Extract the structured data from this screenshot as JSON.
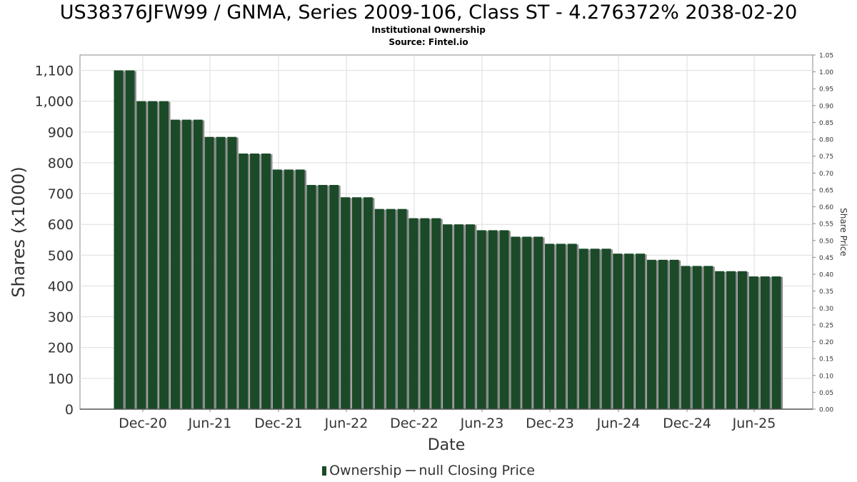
{
  "header": {
    "title": "US38376JFW99 / GNMA, Series 2009-106, Class ST - 4.276372% 2038-02-20",
    "subtitle": "Institutional Ownership",
    "source": "Source: Fintel.io"
  },
  "legend": {
    "items": [
      "Ownership",
      "null Closing Price"
    ]
  },
  "colors": {
    "bar": "#1a4a28",
    "bar_shadow": "#8a8a8a",
    "grid": "#dddddd",
    "axis": "#888888"
  },
  "chart_data": {
    "type": "bar",
    "xlabel": "Date",
    "ylabel": "Shares (x1000)",
    "y2label": "Share Price",
    "ylim": [
      0,
      1150
    ],
    "y2lim": [
      0,
      1.05
    ],
    "yticks": [
      "0",
      "100",
      "200",
      "300",
      "400",
      "500",
      "600",
      "700",
      "800",
      "900",
      "1,000",
      "1,100"
    ],
    "y2ticks": [
      "0.00",
      "0.05",
      "0.10",
      "0.15",
      "0.20",
      "0.25",
      "0.30",
      "0.35",
      "0.40",
      "0.45",
      "0.50",
      "0.55",
      "0.60",
      "0.65",
      "0.70",
      "0.75",
      "0.80",
      "0.85",
      "0.90",
      "0.95",
      "1.00",
      "1.05"
    ],
    "xticks": [
      "Dec-20",
      "Jun-21",
      "Dec-21",
      "Jun-22",
      "Dec-22",
      "Jun-23",
      "Dec-23",
      "Jun-24",
      "Dec-24",
      "Jun-25"
    ],
    "grid": true,
    "legend_position": "bottom",
    "series": [
      {
        "name": "Ownership",
        "values": [
          1100,
          1100,
          1000,
          1000,
          1000,
          940,
          940,
          940,
          884,
          884,
          884,
          830,
          830,
          830,
          778,
          778,
          778,
          728,
          728,
          728,
          688,
          688,
          688,
          650,
          650,
          650,
          620,
          620,
          620,
          600,
          600,
          600,
          581,
          581,
          581,
          560,
          560,
          560,
          537,
          537,
          537,
          521,
          521,
          521,
          505,
          505,
          505,
          485,
          485,
          485,
          465,
          465,
          465,
          448,
          448,
          448,
          431,
          431,
          431
        ]
      }
    ]
  }
}
